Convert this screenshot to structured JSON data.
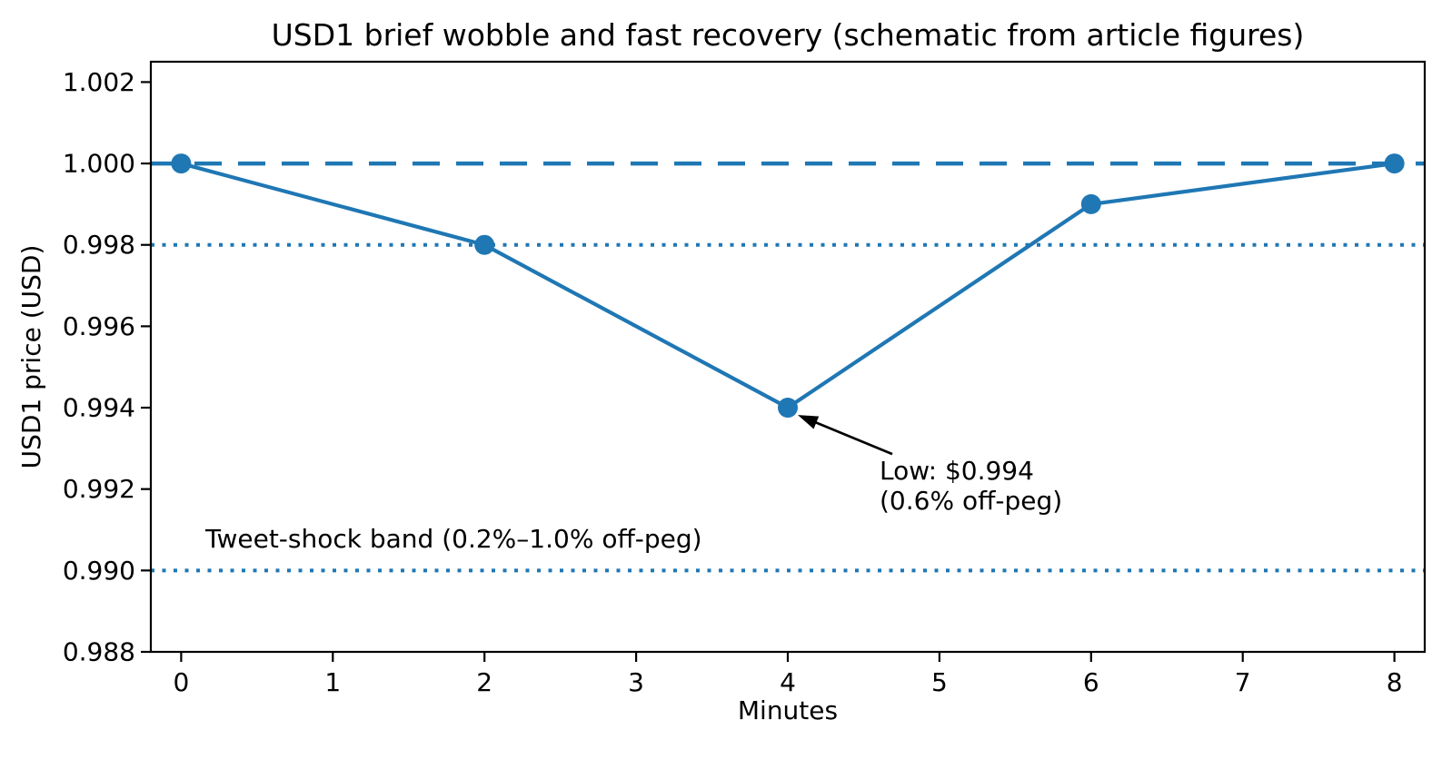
{
  "chart_data": {
    "type": "line",
    "title": "USD1 brief wobble and fast recovery (schematic from article figures)",
    "xlabel": "Minutes",
    "ylabel": "USD1 price (USD)",
    "x": [
      0,
      2,
      4,
      6,
      8
    ],
    "y": [
      1.0,
      0.998,
      0.994,
      0.999,
      1.0
    ],
    "xlim": [
      -0.2,
      8.2
    ],
    "ylim": [
      0.988,
      1.0025
    ],
    "xticks": [
      0,
      1,
      2,
      3,
      4,
      5,
      6,
      7,
      8
    ],
    "yticks": [
      0.988,
      0.99,
      0.992,
      0.994,
      0.996,
      0.998,
      1.0,
      1.002
    ],
    "grid": false,
    "legend": "none",
    "reference_lines": [
      {
        "name": "peg-line",
        "y": 1.0,
        "style": "dashed"
      },
      {
        "name": "band-upper-line",
        "y": 0.998,
        "style": "dotted"
      },
      {
        "name": "band-lower-line",
        "y": 0.99,
        "style": "dotted"
      }
    ],
    "annotations": {
      "low_label": "Low: $0.994\n(0.6% off-peg)",
      "low_point": [
        4,
        0.994
      ],
      "arrow_from": [
        4.689,
        0.99286
      ],
      "arrow_to": [
        4.066,
        0.99382
      ],
      "band_label": "Tweet-shock band (0.2%–1.0% off-peg)"
    },
    "colors": {
      "series": "#1f77b4",
      "reference": "#1f77b4",
      "text": "#000000",
      "spine": "#000000",
      "annotation_arrow": "#000000"
    }
  }
}
